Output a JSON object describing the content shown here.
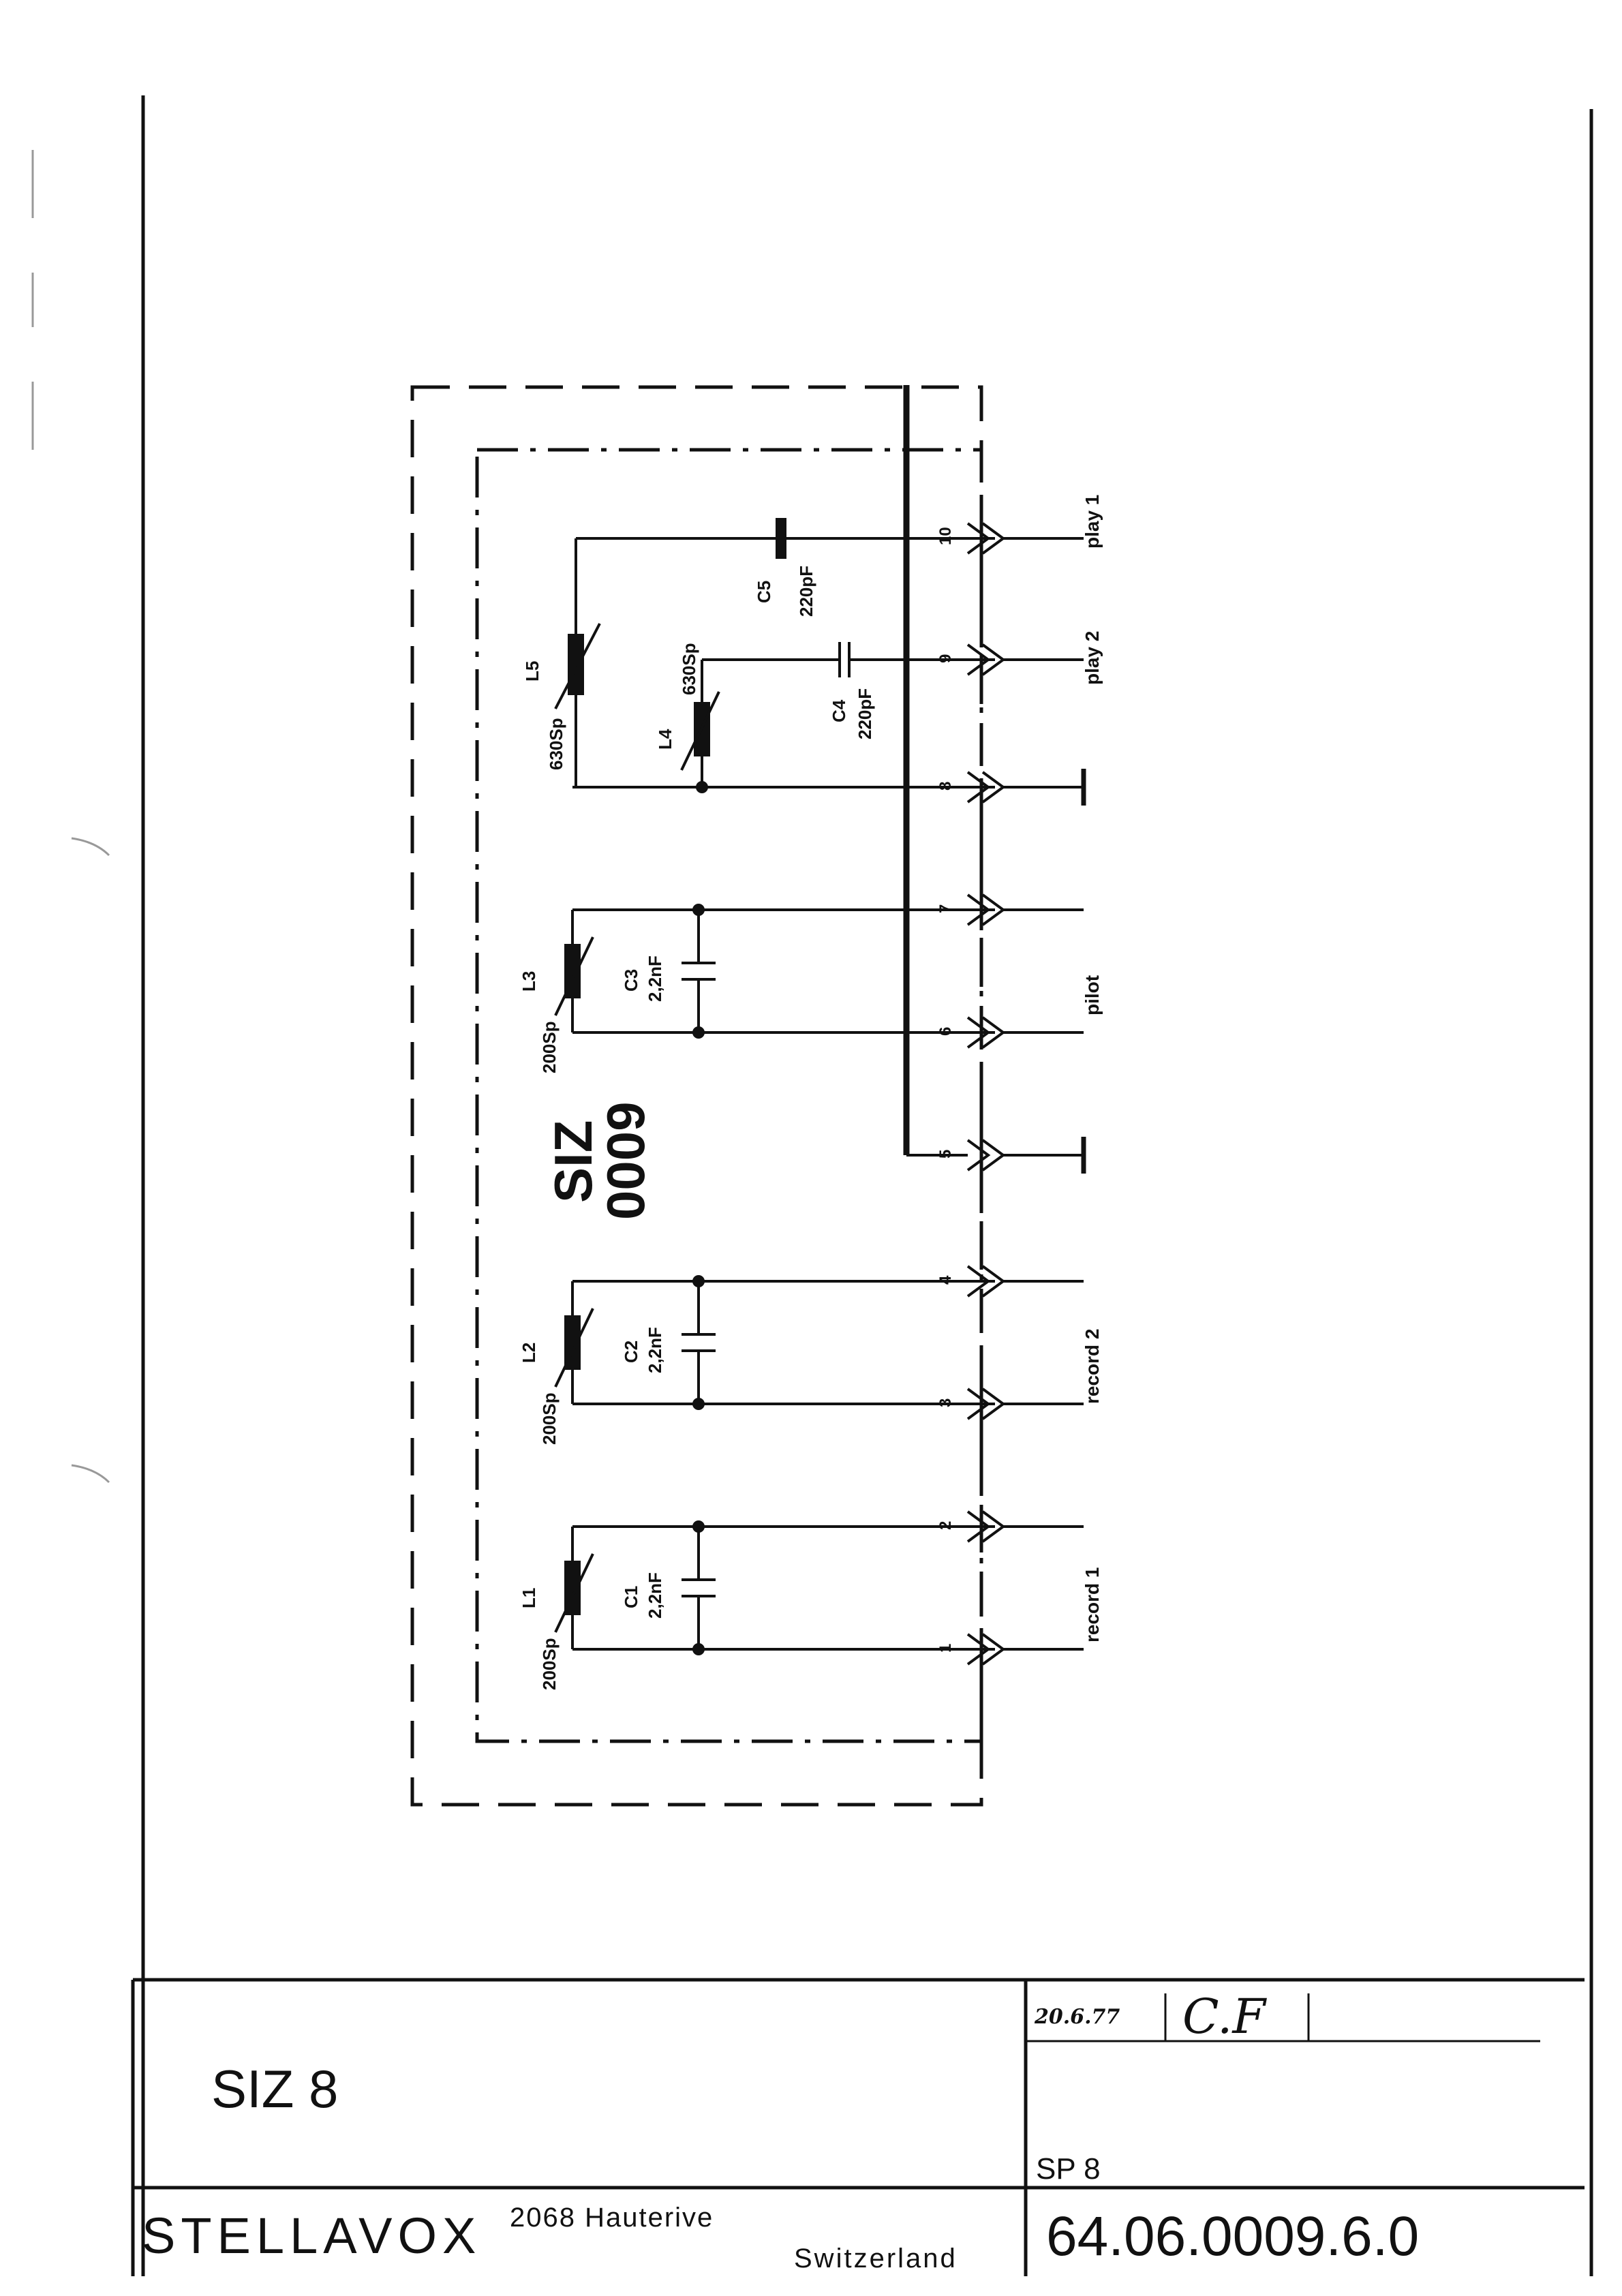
{
  "schematic": {
    "module_name": "SIZ",
    "module_number": "0009",
    "components": {
      "L1": {
        "ref": "L1",
        "value": "200Sp"
      },
      "L2": {
        "ref": "L2",
        "value": "200Sp"
      },
      "L3": {
        "ref": "L3",
        "value": "200Sp"
      },
      "L4": {
        "ref": "L4",
        "value": "630Sp"
      },
      "L5": {
        "ref": "L5",
        "value": "630Sp"
      },
      "C1": {
        "ref": "C1",
        "value": "2,2nF"
      },
      "C2": {
        "ref": "C2",
        "value": "2,2nF"
      },
      "C3": {
        "ref": "C3",
        "value": "2,2nF"
      },
      "C4": {
        "ref": "C4",
        "value": "220pF"
      },
      "C5": {
        "ref": "C5",
        "value": "220pF"
      }
    },
    "pins": [
      "1",
      "2",
      "3",
      "4",
      "5",
      "6",
      "7",
      "8",
      "9",
      "10"
    ],
    "signals": {
      "record1": "record 1",
      "record2": "record 2",
      "pilot": "pilot",
      "play2": "play 2",
      "play1": "play 1"
    }
  },
  "title_block": {
    "title": "SIZ 8",
    "date": "20.6.77",
    "initials": "C.F",
    "sp_label": "SP 8",
    "company": "STELLAVOX",
    "address_line1": "2068 Hauterive",
    "address_line2": "Switzerland",
    "drawing_number": "64.06.0009.6.0"
  }
}
